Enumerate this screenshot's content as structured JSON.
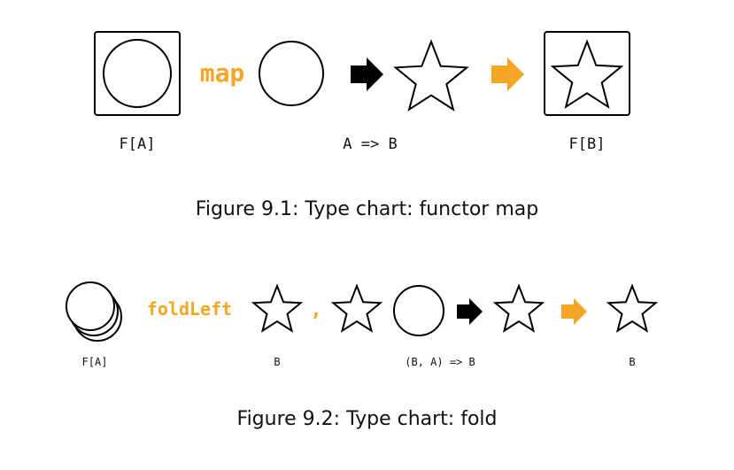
{
  "colors": {
    "accent": "#F5A623",
    "ink": "#000000"
  },
  "figure1": {
    "operation": "map",
    "labels": {
      "input": "F[A]",
      "function": "A => B",
      "output": "F[B]"
    },
    "caption": "Figure 9.1: Type chart: functor map"
  },
  "figure2": {
    "operation": "foldLeft",
    "separator": ",",
    "labels": {
      "input": "F[A]",
      "initial": "B",
      "function": "(B, A) => B",
      "output": "B"
    },
    "caption": "Figure 9.2: Type chart: fold"
  }
}
